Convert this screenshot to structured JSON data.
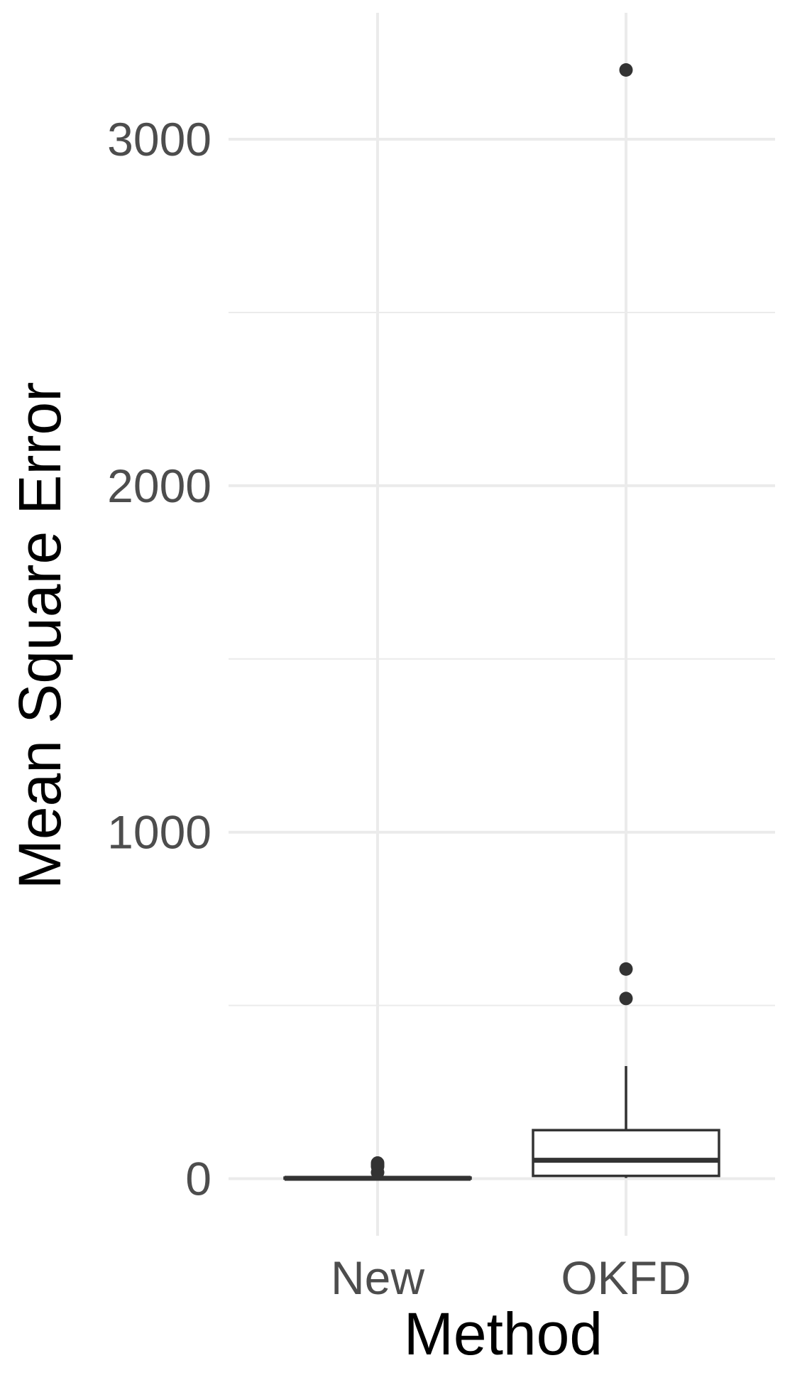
{
  "chart_data": {
    "type": "box",
    "xlabel": "Method",
    "ylabel": "Mean Square Error",
    "ylim": [
      -165,
      3365
    ],
    "yticks": [
      0,
      1000,
      2000,
      3000
    ],
    "ytick_labels": [
      "0",
      "1000",
      "2000",
      "3000"
    ],
    "minor_gridlines": [
      500,
      1500,
      2500
    ],
    "grid": true,
    "categories": [
      "New",
      "OKFD"
    ],
    "boxes": [
      {
        "category": "New",
        "whisker_low": 0,
        "q1": 0,
        "median": 1,
        "q3": 3,
        "whisker_high": 5,
        "outliers": [
          18,
          35,
          40,
          45
        ]
      },
      {
        "category": "OKFD",
        "whisker_low": 2,
        "q1": 8,
        "median": 53,
        "q3": 140,
        "whisker_high": 325,
        "outliers": [
          520,
          605,
          3200
        ]
      }
    ],
    "colors": {
      "box_stroke": "#333333",
      "grid": "#ebebeb",
      "tick_text": "#4d4d4d",
      "title_text": "#000000"
    }
  }
}
